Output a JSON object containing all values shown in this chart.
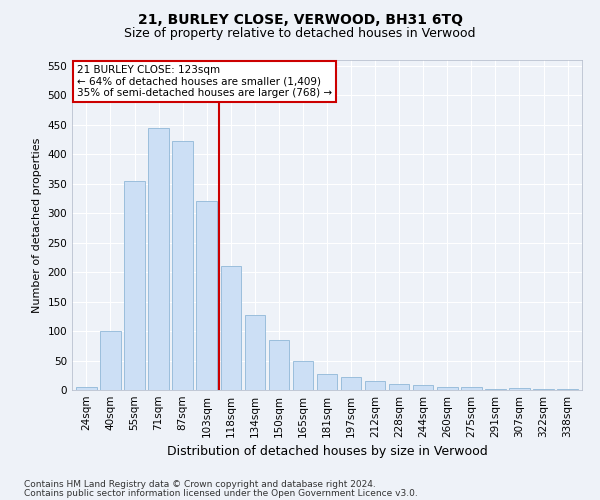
{
  "title": "21, BURLEY CLOSE, VERWOOD, BH31 6TQ",
  "subtitle": "Size of property relative to detached houses in Verwood",
  "xlabel": "Distribution of detached houses by size in Verwood",
  "ylabel": "Number of detached properties",
  "categories": [
    "24sqm",
    "40sqm",
    "55sqm",
    "71sqm",
    "87sqm",
    "103sqm",
    "118sqm",
    "134sqm",
    "150sqm",
    "165sqm",
    "181sqm",
    "197sqm",
    "212sqm",
    "228sqm",
    "244sqm",
    "260sqm",
    "275sqm",
    "291sqm",
    "307sqm",
    "322sqm",
    "338sqm"
  ],
  "values": [
    5,
    100,
    355,
    445,
    422,
    320,
    210,
    128,
    85,
    50,
    27,
    22,
    15,
    10,
    8,
    5,
    5,
    2,
    4,
    2,
    2
  ],
  "bar_color": "#ccdff5",
  "bar_edge_color": "#90b8d8",
  "vline_x_index": 6,
  "vline_color": "#cc0000",
  "annotation_text": "21 BURLEY CLOSE: 123sqm\n← 64% of detached houses are smaller (1,409)\n35% of semi-detached houses are larger (768) →",
  "annotation_box_color": "white",
  "annotation_box_edge": "#cc0000",
  "ylim": [
    0,
    560
  ],
  "yticks": [
    0,
    50,
    100,
    150,
    200,
    250,
    300,
    350,
    400,
    450,
    500,
    550
  ],
  "footer1": "Contains HM Land Registry data © Crown copyright and database right 2024.",
  "footer2": "Contains public sector information licensed under the Open Government Licence v3.0.",
  "background_color": "#eef2f8",
  "grid_color": "#ffffff",
  "title_fontsize": 10,
  "subtitle_fontsize": 9,
  "ylabel_fontsize": 8,
  "xlabel_fontsize": 9,
  "tick_fontsize": 7.5,
  "annotation_fontsize": 7.5,
  "footer_fontsize": 6.5
}
